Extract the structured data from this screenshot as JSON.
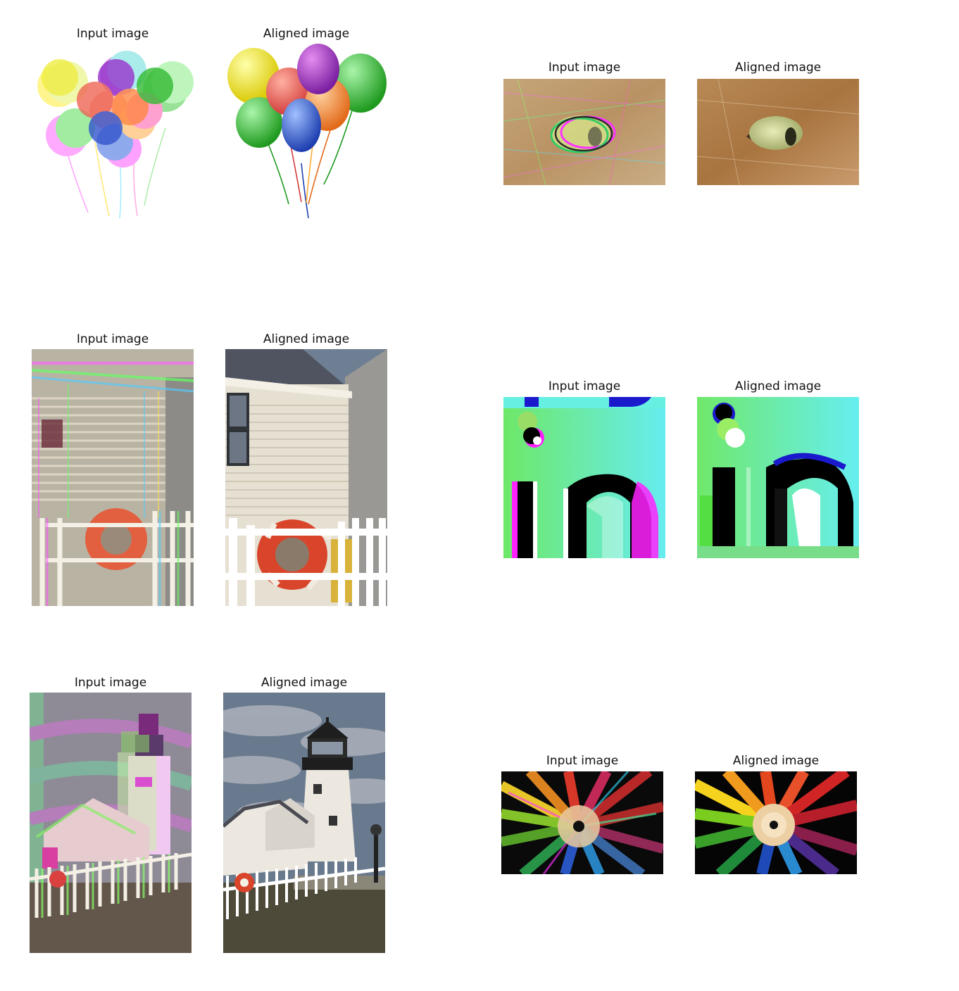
{
  "figure": {
    "pairs": [
      {
        "subject": "balloons",
        "input": {
          "title": "Input image"
        },
        "aligned": {
          "title": "Aligned image"
        }
      },
      {
        "subject": "cat-eye",
        "input": {
          "title": "Input image"
        },
        "aligned": {
          "title": "Aligned image"
        }
      },
      {
        "subject": "house-lifebuoy",
        "input": {
          "title": "Input image"
        },
        "aligned": {
          "title": "Aligned image"
        }
      },
      {
        "subject": "letters-ip",
        "input": {
          "title": "Input image"
        },
        "aligned": {
          "title": "Aligned image"
        }
      },
      {
        "subject": "lighthouse",
        "input": {
          "title": "Input image"
        },
        "aligned": {
          "title": "Aligned image"
        }
      },
      {
        "subject": "colored-pencils",
        "input": {
          "title": "Input image"
        },
        "aligned": {
          "title": "Aligned image"
        }
      }
    ]
  }
}
